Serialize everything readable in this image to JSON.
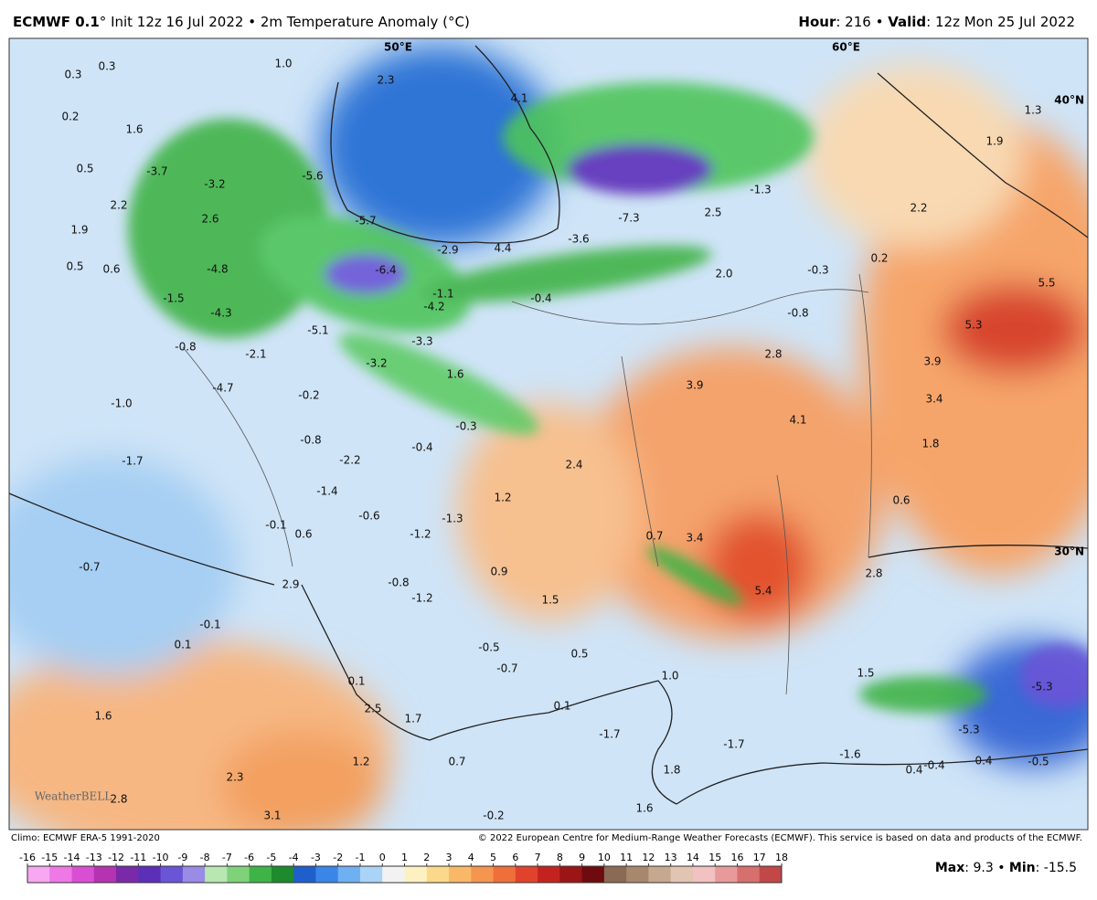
{
  "header": {
    "model": "ECMWF 0.1",
    "degree": "°",
    "init": "Init 12z 16 Jul 2022",
    "separator": "•",
    "field": "2m Temperature Anomaly (°C)",
    "hour_label": "Hour",
    "hour": ": 216",
    "valid_label": "Valid",
    "valid": ": 12z Mon 25 Jul 2022"
  },
  "graticule": [
    "50°E",
    "60°E",
    "40°N",
    "30°N"
  ],
  "map_labels": [
    "0.3",
    "0.3",
    "1.0",
    "2.3",
    "4.1",
    "0.2",
    "1.6",
    "1.3",
    "1.9",
    "0.5",
    "-3.7",
    "-3.2",
    "-5.6",
    "-1.3",
    "2.2",
    "2.2",
    "-5.7",
    "2.6",
    "2.5",
    "-7.3",
    "1.9",
    "-2.9",
    "4.4",
    "-3.6",
    "0.2",
    "0.5",
    "0.6",
    "-4.8",
    "-6.4",
    "2.0",
    "-0.3",
    "5.5",
    "-1.5",
    "-1.1",
    "-0.4",
    "-4.2",
    "-0.8",
    "-4.3",
    "5.3",
    "-5.1",
    "-0.8",
    "-3.3",
    "2.8",
    "-2.1",
    "-3.2",
    "1.6",
    "3.9",
    "3.9",
    "-4.7",
    "-0.2",
    "3.4",
    "-1.0",
    "4.1",
    "-0.3",
    "-0.8",
    "1.8",
    "-0.4",
    "-1.7",
    "-2.2",
    "2.4",
    "-1.4",
    "1.2",
    "0.6",
    "-0.6",
    "-1.3",
    "-0.1",
    "0.6",
    "-1.2",
    "0.7",
    "3.4",
    "-0.7",
    "2.8",
    "0.9",
    "-0.8",
    "5.4",
    "-1.2",
    "2.9",
    "1.5",
    "-0.1",
    "0.1",
    "-0.5",
    "0.5",
    "-0.7",
    "1.5",
    "1.0",
    "-5.3",
    "0.1",
    "0.1",
    "2.5",
    "1.7",
    "1.6",
    "-5.3",
    "-1.7",
    "-1.7",
    "1.2",
    "0.7",
    "-1.6",
    "-0.4",
    "0.4",
    "-0.5",
    "0.4",
    "1.8",
    "2.3",
    "2.8",
    "1.6",
    "-0.2",
    "3.1"
  ],
  "logo": "WeatherBELL",
  "footer": {
    "climo": "Climo: ECMWF ERA-5 1991-2020",
    "copyright": "© 2022 European Centre for Medium-Range Weather Forecasts (ECMWF). This service is based on data and products of the ECMWF.",
    "max_label": "Max",
    "max": ": 9.3",
    "min_label": "Min",
    "min": ": -15.5"
  },
  "colorbar": {
    "ticks": [
      -16,
      -15,
      -14,
      -13,
      -12,
      -11,
      -10,
      -9,
      -8,
      -7,
      -6,
      -5,
      -4,
      -3,
      -2,
      -1,
      0,
      1,
      2,
      3,
      4,
      5,
      6,
      7,
      8,
      9,
      10,
      11,
      12,
      13,
      14,
      15,
      16,
      17,
      18
    ],
    "colors": [
      "#f7a8f0",
      "#ee78e6",
      "#d94fd3",
      "#b533b0",
      "#7a2aa8",
      "#5b2fb8",
      "#6a55d6",
      "#9a8be6",
      "#b9e7b2",
      "#7fd27a",
      "#3fb347",
      "#1e8a2e",
      "#1f5fcc",
      "#3a86e8",
      "#6fb0f2",
      "#aad4f7",
      "#f2f2f2",
      "#fdf1c2",
      "#fbd98a",
      "#f9b867",
      "#f59550",
      "#ef6f3a",
      "#e0432b",
      "#c3231f",
      "#9b1416",
      "#6e0b0e",
      "#8a6a55",
      "#a9876d",
      "#c6a88e",
      "#e1c5b2",
      "#f2c1c1",
      "#e89a9a",
      "#d86f6f",
      "#c24848"
    ]
  }
}
